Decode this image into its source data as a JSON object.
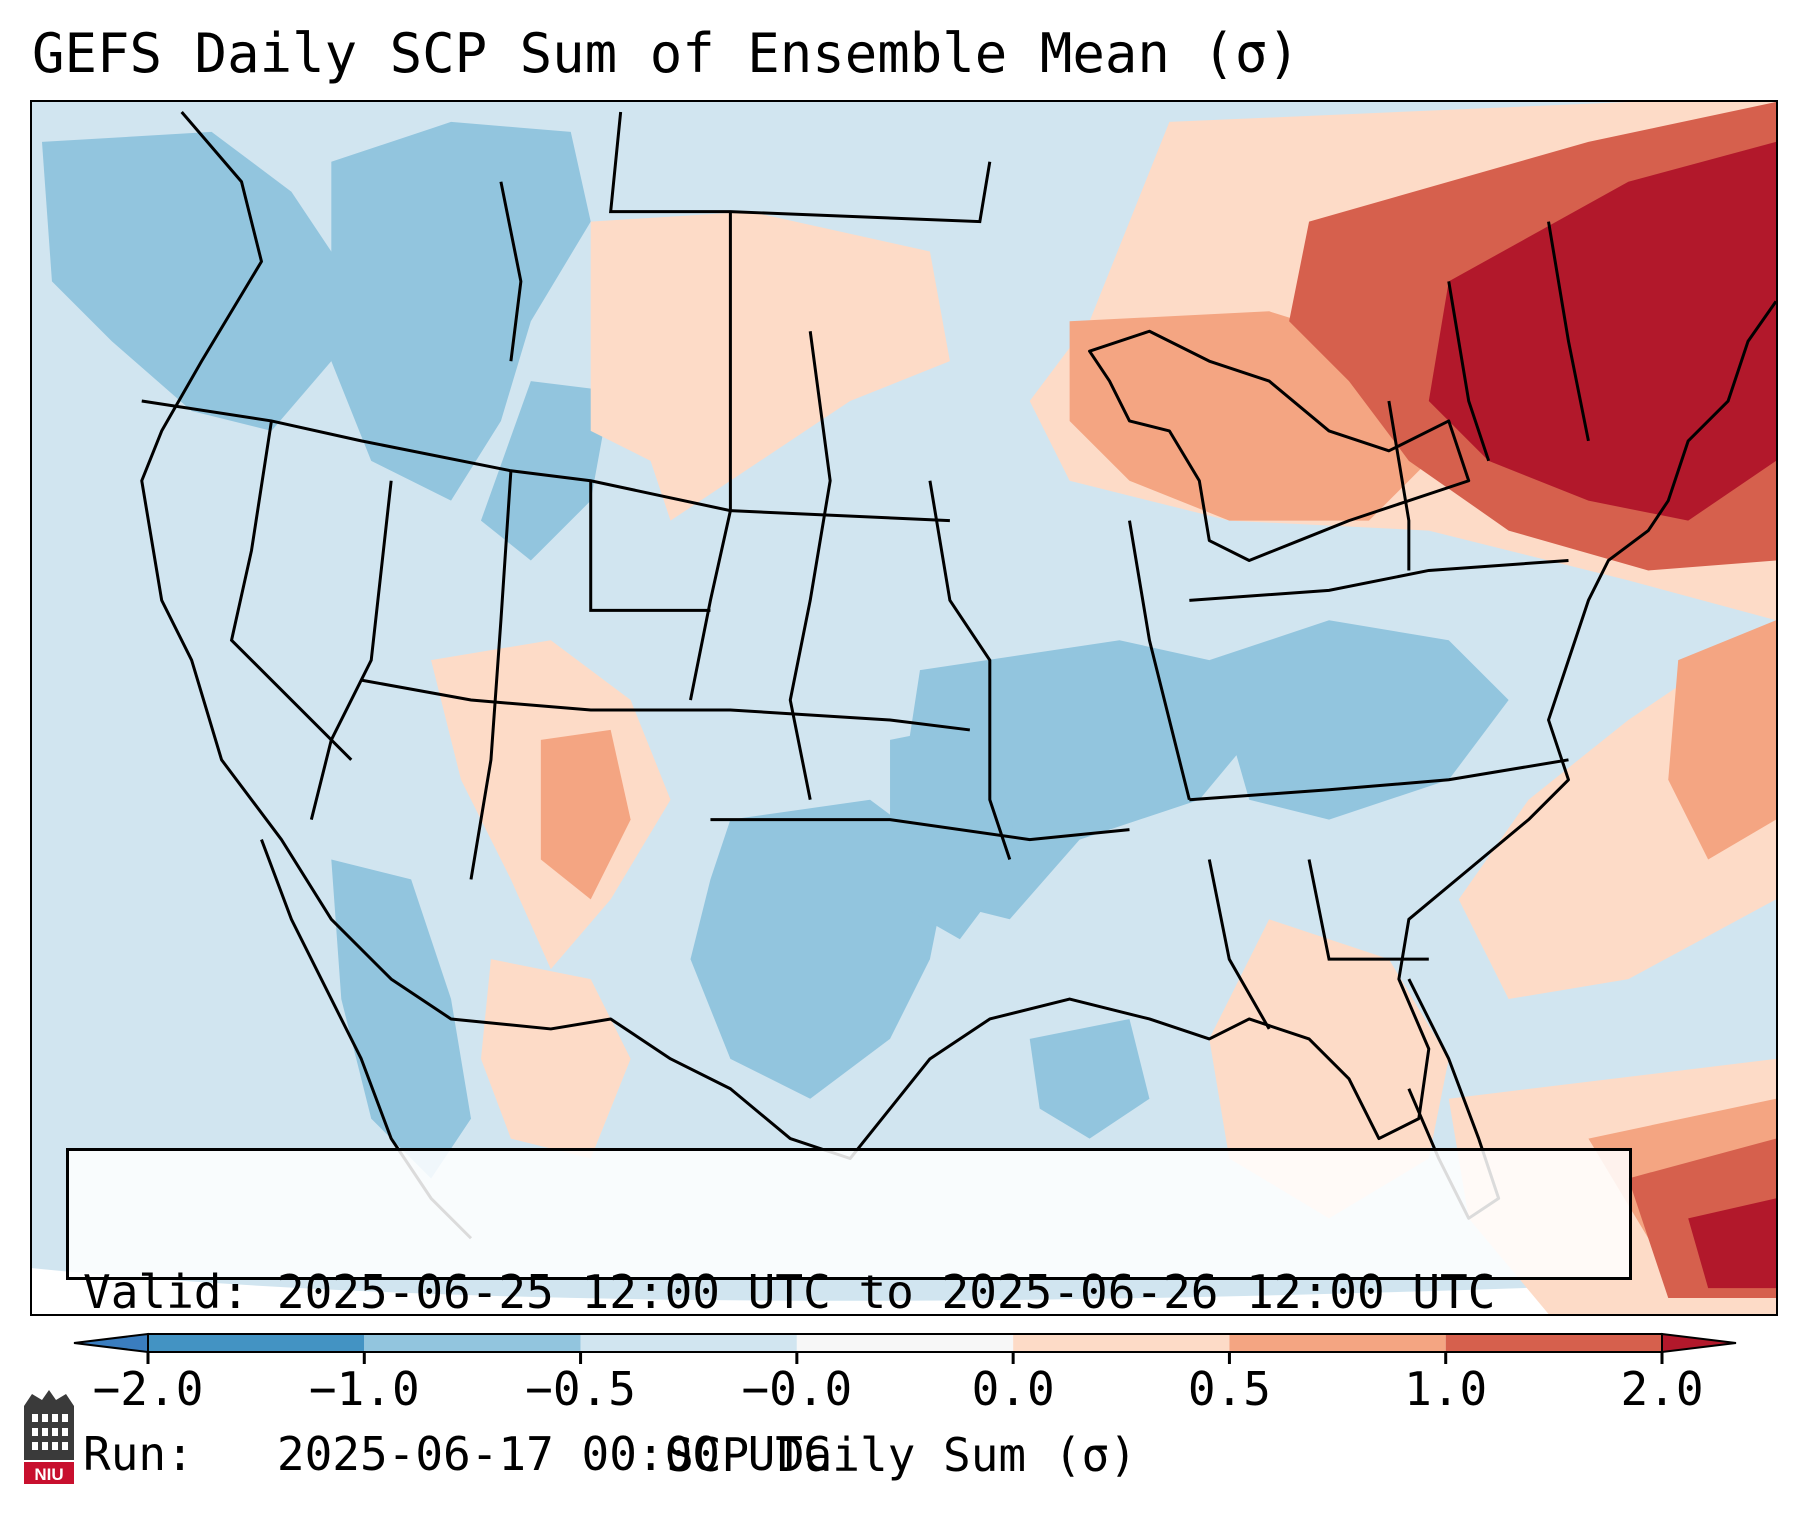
{
  "title": "GEFS Daily SCP Sum of Ensemble Mean (σ)",
  "info": {
    "valid_label": "Valid:",
    "valid_value": "2025-06-25 12:00 UTC to 2025-06-26 12:00 UTC",
    "run_label": "Run:",
    "run_value": "2025-06-17 00:00 UTC"
  },
  "colorbar": {
    "label": "SCP Daily Sum (σ)",
    "ticks": [
      "−2.0",
      "−1.0",
      "−0.5",
      "−0.0",
      "0.0",
      "0.5",
      "1.0",
      "2.0"
    ],
    "bins": [
      {
        "range": "below -2.0",
        "color": "#3a7dbf"
      },
      {
        "range": "-2.0 to -1.0",
        "color": "#4393c3"
      },
      {
        "range": "-1.0 to -0.5",
        "color": "#92c5de"
      },
      {
        "range": "-0.5 to -0.0",
        "color": "#d1e5f0"
      },
      {
        "range": "-0.0 to 0.0",
        "color": "#f7f7f7"
      },
      {
        "range": "0.0 to 0.5",
        "color": "#fddbc7"
      },
      {
        "range": "0.5 to 1.0",
        "color": "#f4a582"
      },
      {
        "range": "1.0 to 2.0",
        "color": "#d6604d"
      },
      {
        "range": "above 2.0",
        "color": "#b2182b"
      }
    ]
  },
  "logo": {
    "text": "NIU",
    "color": "#c8102e"
  },
  "map": {
    "region": "Contiguous United States",
    "background_color": "#d1e5f0",
    "summary": "Positive anomalies (red) concentrated over the Northeast, Great Lakes and western Atlantic; negative anomalies (blue) over the southern Plains, Mississippi Valley and Pacific Northwest."
  }
}
